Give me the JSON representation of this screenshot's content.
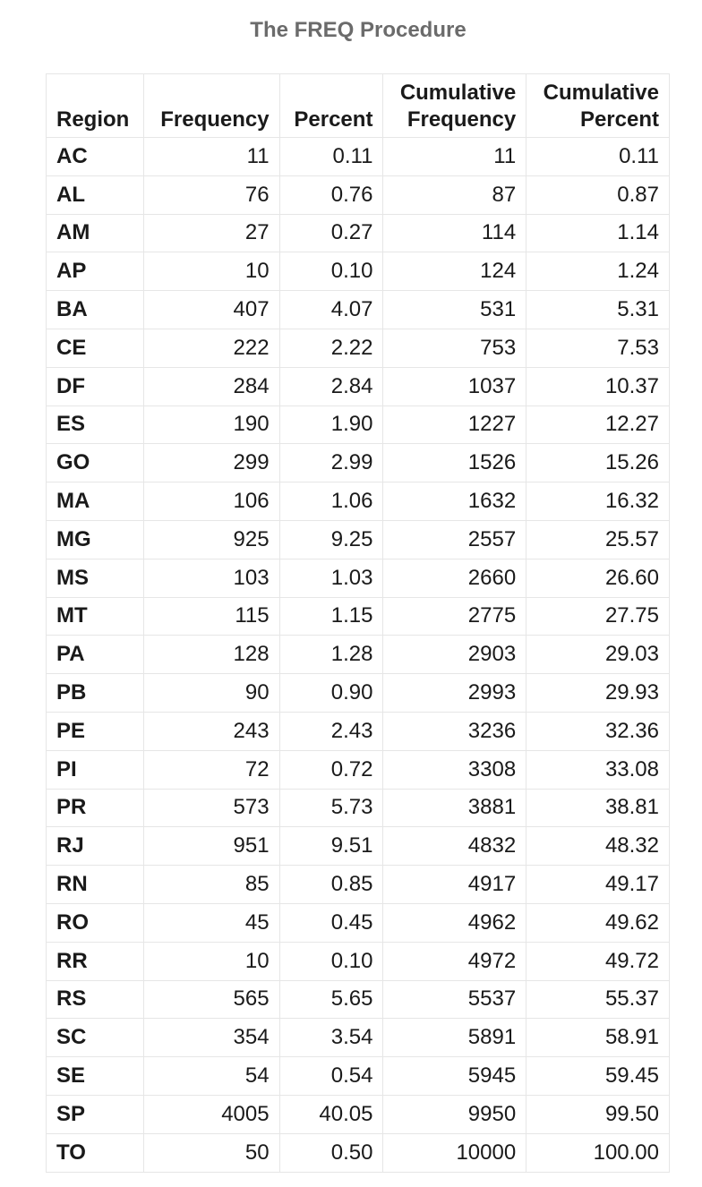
{
  "title": "The FREQ Procedure",
  "table": {
    "headers": [
      {
        "line1": "",
        "line2": "Region"
      },
      {
        "line1": "",
        "line2": "Frequency"
      },
      {
        "line1": "",
        "line2": "Percent"
      },
      {
        "line1": "Cumulative",
        "line2": "Frequency"
      },
      {
        "line1": "Cumulative",
        "line2": "Percent"
      }
    ],
    "rows": [
      {
        "region": "AC",
        "frequency": "11",
        "percent": "0.11",
        "cum_frequency": "11",
        "cum_percent": "0.11"
      },
      {
        "region": "AL",
        "frequency": "76",
        "percent": "0.76",
        "cum_frequency": "87",
        "cum_percent": "0.87"
      },
      {
        "region": "AM",
        "frequency": "27",
        "percent": "0.27",
        "cum_frequency": "114",
        "cum_percent": "1.14"
      },
      {
        "region": "AP",
        "frequency": "10",
        "percent": "0.10",
        "cum_frequency": "124",
        "cum_percent": "1.24"
      },
      {
        "region": "BA",
        "frequency": "407",
        "percent": "4.07",
        "cum_frequency": "531",
        "cum_percent": "5.31"
      },
      {
        "region": "CE",
        "frequency": "222",
        "percent": "2.22",
        "cum_frequency": "753",
        "cum_percent": "7.53"
      },
      {
        "region": "DF",
        "frequency": "284",
        "percent": "2.84",
        "cum_frequency": "1037",
        "cum_percent": "10.37"
      },
      {
        "region": "ES",
        "frequency": "190",
        "percent": "1.90",
        "cum_frequency": "1227",
        "cum_percent": "12.27"
      },
      {
        "region": "GO",
        "frequency": "299",
        "percent": "2.99",
        "cum_frequency": "1526",
        "cum_percent": "15.26"
      },
      {
        "region": "MA",
        "frequency": "106",
        "percent": "1.06",
        "cum_frequency": "1632",
        "cum_percent": "16.32"
      },
      {
        "region": "MG",
        "frequency": "925",
        "percent": "9.25",
        "cum_frequency": "2557",
        "cum_percent": "25.57"
      },
      {
        "region": "MS",
        "frequency": "103",
        "percent": "1.03",
        "cum_frequency": "2660",
        "cum_percent": "26.60"
      },
      {
        "region": "MT",
        "frequency": "115",
        "percent": "1.15",
        "cum_frequency": "2775",
        "cum_percent": "27.75"
      },
      {
        "region": "PA",
        "frequency": "128",
        "percent": "1.28",
        "cum_frequency": "2903",
        "cum_percent": "29.03"
      },
      {
        "region": "PB",
        "frequency": "90",
        "percent": "0.90",
        "cum_frequency": "2993",
        "cum_percent": "29.93"
      },
      {
        "region": "PE",
        "frequency": "243",
        "percent": "2.43",
        "cum_frequency": "3236",
        "cum_percent": "32.36"
      },
      {
        "region": "PI",
        "frequency": "72",
        "percent": "0.72",
        "cum_frequency": "3308",
        "cum_percent": "33.08"
      },
      {
        "region": "PR",
        "frequency": "573",
        "percent": "5.73",
        "cum_frequency": "3881",
        "cum_percent": "38.81"
      },
      {
        "region": "RJ",
        "frequency": "951",
        "percent": "9.51",
        "cum_frequency": "4832",
        "cum_percent": "48.32"
      },
      {
        "region": "RN",
        "frequency": "85",
        "percent": "0.85",
        "cum_frequency": "4917",
        "cum_percent": "49.17"
      },
      {
        "region": "RO",
        "frequency": "45",
        "percent": "0.45",
        "cum_frequency": "4962",
        "cum_percent": "49.62"
      },
      {
        "region": "RR",
        "frequency": "10",
        "percent": "0.10",
        "cum_frequency": "4972",
        "cum_percent": "49.72"
      },
      {
        "region": "RS",
        "frequency": "565",
        "percent": "5.65",
        "cum_frequency": "5537",
        "cum_percent": "55.37"
      },
      {
        "region": "SC",
        "frequency": "354",
        "percent": "3.54",
        "cum_frequency": "5891",
        "cum_percent": "58.91"
      },
      {
        "region": "SE",
        "frequency": "54",
        "percent": "0.54",
        "cum_frequency": "5945",
        "cum_percent": "59.45"
      },
      {
        "region": "SP",
        "frequency": "4005",
        "percent": "40.05",
        "cum_frequency": "9950",
        "cum_percent": "99.50"
      },
      {
        "region": "TO",
        "frequency": "50",
        "percent": "0.50",
        "cum_frequency": "10000",
        "cum_percent": "100.00"
      }
    ]
  }
}
